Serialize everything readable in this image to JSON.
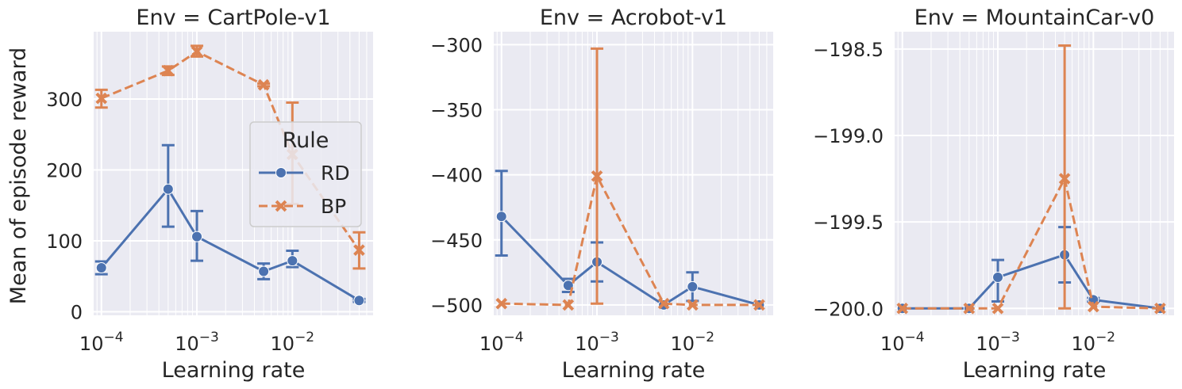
{
  "figure": {
    "ylabel": "Mean of episode reward",
    "legend": {
      "title": "Rule",
      "placement": "upper-right of first panel",
      "entries": [
        {
          "label": "RD",
          "marker": "circle",
          "linestyle": "solid"
        },
        {
          "label": "BP",
          "marker": "x",
          "linestyle": "dashed"
        }
      ]
    },
    "colors": {
      "RD": "#4c72b0",
      "BP": "#dd8452",
      "plot_background": "#eaeaf2",
      "grid": "#ffffff",
      "text": "#262626"
    }
  },
  "chart_data": [
    {
      "type": "line",
      "title": "Env = CartPole-v1",
      "xlabel": "Learning rate",
      "ylabel": "Mean of episode reward",
      "xscale": "log",
      "xlim": [
        8.3e-05,
        0.07
      ],
      "ylim": [
        -5,
        395
      ],
      "grid": true,
      "x_ticks": [
        {
          "value": 0.0001,
          "base": "10",
          "exp": "−4"
        },
        {
          "value": 0.001,
          "base": "10",
          "exp": "−3"
        },
        {
          "value": 0.01,
          "base": "10",
          "exp": "−2"
        }
      ],
      "y_ticks": [
        {
          "value": 0,
          "label": "0"
        },
        {
          "value": 100,
          "label": "100"
        },
        {
          "value": 200,
          "label": "200"
        },
        {
          "value": 300,
          "label": "300"
        }
      ],
      "series": [
        {
          "name": "RD",
          "x": [
            0.0001,
            0.0005,
            0.001,
            0.005,
            0.01,
            0.05
          ],
          "y": [
            62,
            173,
            106,
            57,
            72,
            16
          ],
          "err_low": [
            53,
            120,
            72,
            46,
            63,
            14
          ],
          "err_high": [
            71,
            235,
            142,
            68,
            86,
            18
          ]
        },
        {
          "name": "BP",
          "x": [
            0.0001,
            0.0005,
            0.001,
            0.005,
            0.01,
            0.05
          ],
          "y": [
            301,
            340,
            367,
            320,
            222,
            87
          ],
          "err_low": [
            288,
            334,
            360,
            318,
            152,
            61
          ],
          "err_high": [
            313,
            346,
            375,
            322,
            295,
            112
          ]
        }
      ]
    },
    {
      "type": "line",
      "title": "Env = Acrobot-v1",
      "xlabel": "Learning rate",
      "xscale": "log",
      "xlim": [
        8.3e-05,
        0.07
      ],
      "ylim": [
        -508,
        -290
      ],
      "grid": true,
      "x_ticks": [
        {
          "value": 0.0001,
          "base": "10",
          "exp": "−4"
        },
        {
          "value": 0.001,
          "base": "10",
          "exp": "−3"
        },
        {
          "value": 0.01,
          "base": "10",
          "exp": "−2"
        }
      ],
      "y_ticks": [
        {
          "value": -300,
          "label": "−300"
        },
        {
          "value": -350,
          "label": "−350"
        },
        {
          "value": -400,
          "label": "−400"
        },
        {
          "value": -450,
          "label": "−450"
        },
        {
          "value": -500,
          "label": "−500"
        }
      ],
      "series": [
        {
          "name": "RD",
          "x": [
            0.0001,
            0.0005,
            0.001,
            0.005,
            0.01,
            0.05
          ],
          "y": [
            -432,
            -485,
            -467,
            -500,
            -486,
            -500
          ],
          "err_low": [
            -462,
            -490,
            -482,
            -500,
            -497,
            -500
          ],
          "err_high": [
            -397,
            -480,
            -452,
            -500,
            -475,
            -500
          ]
        },
        {
          "name": "BP",
          "x": [
            0.0001,
            0.0005,
            0.001,
            0.005,
            0.01,
            0.05
          ],
          "y": [
            -499,
            -500,
            -401,
            -499,
            -500,
            -500
          ],
          "err_low": [
            -499,
            -500,
            -499,
            -499,
            -500,
            -500
          ],
          "err_high": [
            -499,
            -500,
            -303,
            -499,
            -500,
            -500
          ]
        }
      ]
    },
    {
      "type": "line",
      "title": "Env = MountainCar-v0",
      "xlabel": "Learning rate",
      "xscale": "log",
      "xlim": [
        8.3e-05,
        0.07
      ],
      "ylim": [
        -200.04,
        -198.4
      ],
      "grid": true,
      "x_ticks": [
        {
          "value": 0.0001,
          "base": "10",
          "exp": "−4"
        },
        {
          "value": 0.001,
          "base": "10",
          "exp": "−3"
        },
        {
          "value": 0.01,
          "base": "10",
          "exp": "−2"
        }
      ],
      "y_ticks": [
        {
          "value": -198.5,
          "label": "−198.5"
        },
        {
          "value": -199.0,
          "label": "−199.0"
        },
        {
          "value": -199.5,
          "label": "−199.5"
        },
        {
          "value": -200.0,
          "label": "−200.0"
        }
      ],
      "series": [
        {
          "name": "RD",
          "x": [
            0.0001,
            0.0005,
            0.001,
            0.005,
            0.01,
            0.05
          ],
          "y": [
            -200.0,
            -200.0,
            -199.82,
            -199.69,
            -199.95,
            -200.0
          ],
          "err_low": [
            -200.0,
            -200.0,
            -199.96,
            -199.85,
            -199.96,
            -200.0
          ],
          "err_high": [
            -200.0,
            -200.0,
            -199.72,
            -199.53,
            -199.94,
            -200.0
          ]
        },
        {
          "name": "BP",
          "x": [
            0.0001,
            0.0005,
            0.001,
            0.005,
            0.01,
            0.05
          ],
          "y": [
            -200.0,
            -200.0,
            -200.0,
            -199.25,
            -199.99,
            -200.0
          ],
          "err_low": [
            -200.0,
            -200.0,
            -200.0,
            -200.0,
            -199.99,
            -200.0
          ],
          "err_high": [
            -200.0,
            -200.0,
            -200.0,
            -198.48,
            -199.99,
            -200.0
          ]
        }
      ]
    }
  ]
}
